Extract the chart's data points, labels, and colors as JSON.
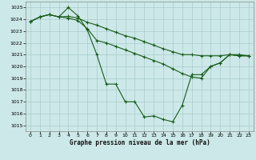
{
  "title": "Graphe pression niveau de la mer (hPa)",
  "bg_color": "#cce8e8",
  "grid_color": "#aacccc",
  "line_color": "#1a5c1a",
  "xlim": [
    -0.5,
    23.5
  ],
  "ylim": [
    1014.5,
    1025.5
  ],
  "yticks": [
    1015,
    1016,
    1017,
    1018,
    1019,
    1020,
    1021,
    1022,
    1023,
    1024,
    1025
  ],
  "xticks": [
    0,
    1,
    2,
    3,
    4,
    5,
    6,
    7,
    8,
    9,
    10,
    11,
    12,
    13,
    14,
    15,
    16,
    17,
    18,
    19,
    20,
    21,
    22,
    23
  ],
  "series": [
    [
      1023.8,
      1024.2,
      1024.4,
      1024.2,
      1025.0,
      1024.3,
      1023.1,
      1021.0,
      1018.5,
      1018.5,
      1017.0,
      1017.0,
      1015.7,
      1015.8,
      1015.5,
      1015.3,
      1016.7,
      1019.3,
      1019.3,
      1020.0,
      1020.3,
      1021.0,
      1020.9,
      1020.9
    ],
    [
      1023.8,
      1024.2,
      1024.4,
      1024.2,
      1024.25,
      1024.1,
      1023.75,
      1023.5,
      1023.2,
      1022.9,
      1022.6,
      1022.4,
      1022.1,
      1021.8,
      1021.5,
      1021.25,
      1021.0,
      1021.0,
      1020.9,
      1020.9,
      1020.9,
      1021.0,
      1021.0,
      1020.9
    ],
    [
      1023.8,
      1024.2,
      1024.4,
      1024.2,
      1024.1,
      1023.9,
      1023.2,
      1022.2,
      1022.0,
      1021.7,
      1021.4,
      1021.1,
      1020.8,
      1020.5,
      1020.2,
      1019.8,
      1019.4,
      1019.1,
      1019.0,
      1020.0,
      1020.3,
      1021.0,
      1020.9,
      1020.9
    ]
  ]
}
